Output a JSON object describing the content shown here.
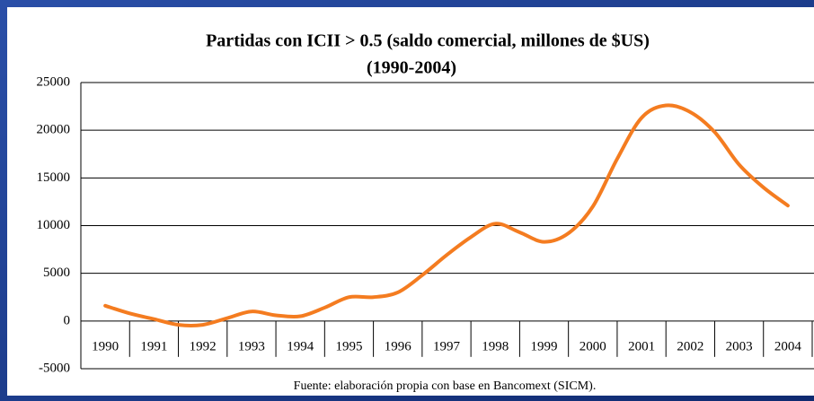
{
  "chart_data": {
    "type": "line",
    "title": [
      "Partidas con ICII > 0.5 (saldo comercial, millones de $US)",
      "(1990-2004)"
    ],
    "source": "Fuente: elaboración propia con base en Bancomext (SICM).",
    "categories": [
      "1990",
      null,
      "1991",
      null,
      "1992",
      null,
      "1993",
      null,
      "1994",
      null,
      "1995",
      null,
      "1996",
      null,
      "1997",
      null,
      "1998",
      null,
      "1999",
      null,
      "2000",
      null,
      "2001",
      null,
      "2002",
      null,
      "2003",
      null,
      "2004"
    ],
    "series": [
      {
        "name": "Partidas con ICII > 0.5",
        "color": "#f47c20",
        "values": [
          1600,
          800,
          200,
          -400,
          -400,
          300,
          1000,
          600,
          500,
          1400,
          2500,
          2500,
          3000,
          4800,
          6900,
          8800,
          10200,
          9300,
          8300,
          9200,
          12000,
          17000,
          21300,
          22600,
          21900,
          19800,
          16400,
          14000,
          12100
        ]
      }
    ],
    "ylim": [
      -5000,
      25000
    ],
    "yticks": [
      -5000,
      0,
      5000,
      10000,
      15000,
      20000,
      25000
    ],
    "grid": true
  }
}
